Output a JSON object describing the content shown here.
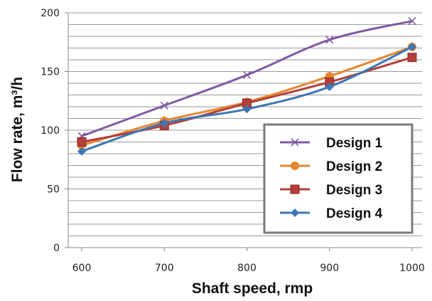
{
  "chart_data": {
    "type": "line",
    "title": "",
    "xlabel": "Shaft speed, rmp",
    "ylabel": "Flow rate, m³/h",
    "x": [
      600,
      700,
      800,
      900,
      1000
    ],
    "xlim": [
      600,
      1000
    ],
    "ylim": [
      0,
      200
    ],
    "xticks": [
      "600",
      "700",
      "800",
      "900",
      "1000"
    ],
    "yticks": [
      "0",
      "50",
      "100",
      "150",
      "200"
    ],
    "grid": true,
    "legend_position": "bottom-right",
    "series": [
      {
        "name": "Design 1",
        "color": "#7F5AA2",
        "marker": "x",
        "values": [
          95,
          121,
          147,
          177,
          193
        ]
      },
      {
        "name": "Design 2",
        "color": "#E8862E",
        "marker": "circle",
        "values": [
          87,
          108,
          124,
          146,
          171
        ]
      },
      {
        "name": "Design 3",
        "color": "#B43F3A",
        "marker": "square",
        "values": [
          90,
          104,
          123,
          141,
          162
        ]
      },
      {
        "name": "Design 4",
        "color": "#3C77B4",
        "marker": "diamond",
        "values": [
          82,
          106,
          118,
          137,
          171
        ]
      }
    ]
  }
}
